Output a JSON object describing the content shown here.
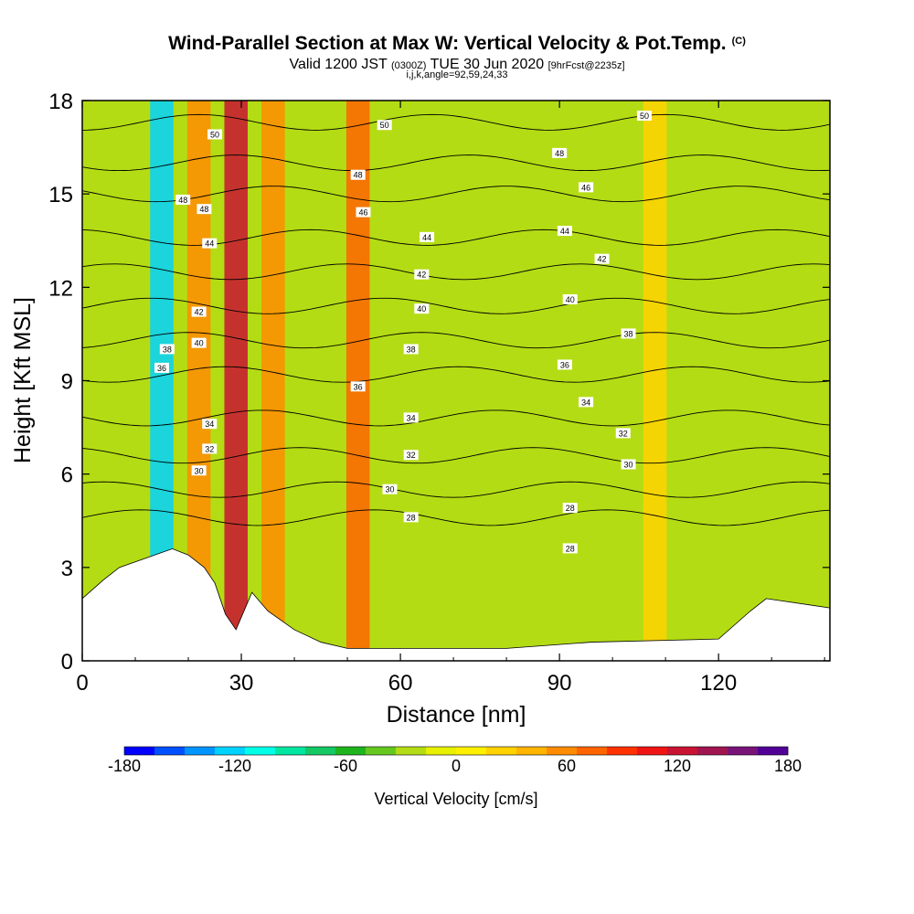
{
  "header": {
    "title": "Wind-Parallel Section at Max W: Vertical Velocity & Pot.Temp.",
    "copyright": "(C)",
    "valid_prefix": "Valid 1200 JST",
    "valid_utc": "(0300Z)",
    "valid_date": "TUE 30 Jun 2020",
    "forecast": "[9hrFcst@2235z]",
    "indices": "i,j,k,angle=92,59,24,33"
  },
  "chart_data": {
    "type": "heatmap",
    "xlabel": "Distance [nm]",
    "ylabel": "Height [Kft MSL]",
    "xlim": [
      0,
      141
    ],
    "ylim": [
      0,
      18
    ],
    "xticks": [
      0,
      30,
      60,
      90,
      120
    ],
    "yticks": [
      0,
      3,
      6,
      9,
      12,
      15,
      18
    ],
    "colorbar": {
      "label": "Vertical Velocity [cm/s]",
      "range": [
        -180,
        180
      ],
      "tick_values": [
        -180,
        -120,
        -60,
        0,
        60,
        120,
        180
      ],
      "colors": [
        "#0000ff",
        "#0050ff",
        "#0094ff",
        "#00d2ff",
        "#00ffe6",
        "#00e6a0",
        "#14c864",
        "#1eb41e",
        "#64c81e",
        "#b4dc14",
        "#e6f000",
        "#fff000",
        "#ffd200",
        "#ffb400",
        "#ff8c00",
        "#ff6400",
        "#ff3200",
        "#f01414",
        "#c81432",
        "#a01450",
        "#781478",
        "#500096"
      ]
    },
    "updraft_bands": [
      {
        "x": 15,
        "value": -120
      },
      {
        "x": 22,
        "value": 60
      },
      {
        "x": 29,
        "value": 130
      },
      {
        "x": 36,
        "value": 50
      },
      {
        "x": 52,
        "value": 70
      },
      {
        "x": 108,
        "value": 25
      }
    ],
    "terrain_kft": [
      {
        "x": 0,
        "y": 2.0
      },
      {
        "x": 2,
        "y": 2.3
      },
      {
        "x": 4,
        "y": 2.6
      },
      {
        "x": 7,
        "y": 3.0
      },
      {
        "x": 12,
        "y": 3.3
      },
      {
        "x": 17,
        "y": 3.6
      },
      {
        "x": 20,
        "y": 3.4
      },
      {
        "x": 23,
        "y": 3.0
      },
      {
        "x": 25,
        "y": 2.5
      },
      {
        "x": 27,
        "y": 1.5
      },
      {
        "x": 29,
        "y": 1.0
      },
      {
        "x": 32,
        "y": 2.2
      },
      {
        "x": 35,
        "y": 1.6
      },
      {
        "x": 40,
        "y": 1.0
      },
      {
        "x": 45,
        "y": 0.6
      },
      {
        "x": 50,
        "y": 0.4
      },
      {
        "x": 80,
        "y": 0.4
      },
      {
        "x": 96,
        "y": 0.6
      },
      {
        "x": 120,
        "y": 0.7
      },
      {
        "x": 126,
        "y": 1.6
      },
      {
        "x": 129,
        "y": 2.0
      },
      {
        "x": 141,
        "y": 1.7
      }
    ],
    "theta_contours": [
      {
        "label": "28",
        "y": 4.6
      },
      {
        "label": "30",
        "y": 5.5
      },
      {
        "label": "32",
        "y": 6.6
      },
      {
        "label": "34",
        "y": 7.8
      },
      {
        "label": "36",
        "y": 9.2
      },
      {
        "label": "38",
        "y": 10.3
      },
      {
        "label": "40",
        "y": 11.4
      },
      {
        "label": "42",
        "y": 12.5
      },
      {
        "label": "44",
        "y": 13.6
      },
      {
        "label": "46",
        "y": 15.0
      },
      {
        "label": "48",
        "y": 16.0
      },
      {
        "label": "50",
        "y": 17.3
      }
    ],
    "contour_labels": [
      {
        "text": "50",
        "x": 25,
        "y": 16.9
      },
      {
        "text": "48",
        "x": 19,
        "y": 14.8
      },
      {
        "text": "48",
        "x": 23,
        "y": 14.5
      },
      {
        "text": "44",
        "x": 24,
        "y": 13.4
      },
      {
        "text": "42",
        "x": 22,
        "y": 11.2
      },
      {
        "text": "40",
        "x": 22,
        "y": 10.2
      },
      {
        "text": "38",
        "x": 16,
        "y": 10.0
      },
      {
        "text": "36",
        "x": 15,
        "y": 9.4
      },
      {
        "text": "34",
        "x": 24,
        "y": 7.6
      },
      {
        "text": "32",
        "x": 24,
        "y": 6.8
      },
      {
        "text": "30",
        "x": 22,
        "y": 6.1
      },
      {
        "text": "50",
        "x": 57,
        "y": 17.2
      },
      {
        "text": "48",
        "x": 52,
        "y": 15.6
      },
      {
        "text": "46",
        "x": 53,
        "y": 14.4
      },
      {
        "text": "44",
        "x": 65,
        "y": 13.6
      },
      {
        "text": "42",
        "x": 64,
        "y": 12.4
      },
      {
        "text": "40",
        "x": 64,
        "y": 11.3
      },
      {
        "text": "38",
        "x": 62,
        "y": 10.0
      },
      {
        "text": "36",
        "x": 52,
        "y": 8.8
      },
      {
        "text": "34",
        "x": 62,
        "y": 7.8
      },
      {
        "text": "32",
        "x": 62,
        "y": 6.6
      },
      {
        "text": "30",
        "x": 58,
        "y": 5.5
      },
      {
        "text": "28",
        "x": 62,
        "y": 4.6
      },
      {
        "text": "28",
        "x": 92,
        "y": 4.9
      },
      {
        "text": "28",
        "x": 92,
        "y": 3.6
      },
      {
        "text": "50",
        "x": 106,
        "y": 17.5
      },
      {
        "text": "48",
        "x": 90,
        "y": 16.3
      },
      {
        "text": "46",
        "x": 95,
        "y": 15.2
      },
      {
        "text": "44",
        "x": 91,
        "y": 13.8
      },
      {
        "text": "42",
        "x": 98,
        "y": 12.9
      },
      {
        "text": "40",
        "x": 92,
        "y": 11.6
      },
      {
        "text": "38",
        "x": 103,
        "y": 10.5
      },
      {
        "text": "36",
        "x": 91,
        "y": 9.5
      },
      {
        "text": "34",
        "x": 95,
        "y": 8.3
      },
      {
        "text": "32",
        "x": 102,
        "y": 7.3
      },
      {
        "text": "30",
        "x": 103,
        "y": 6.3
      }
    ]
  }
}
